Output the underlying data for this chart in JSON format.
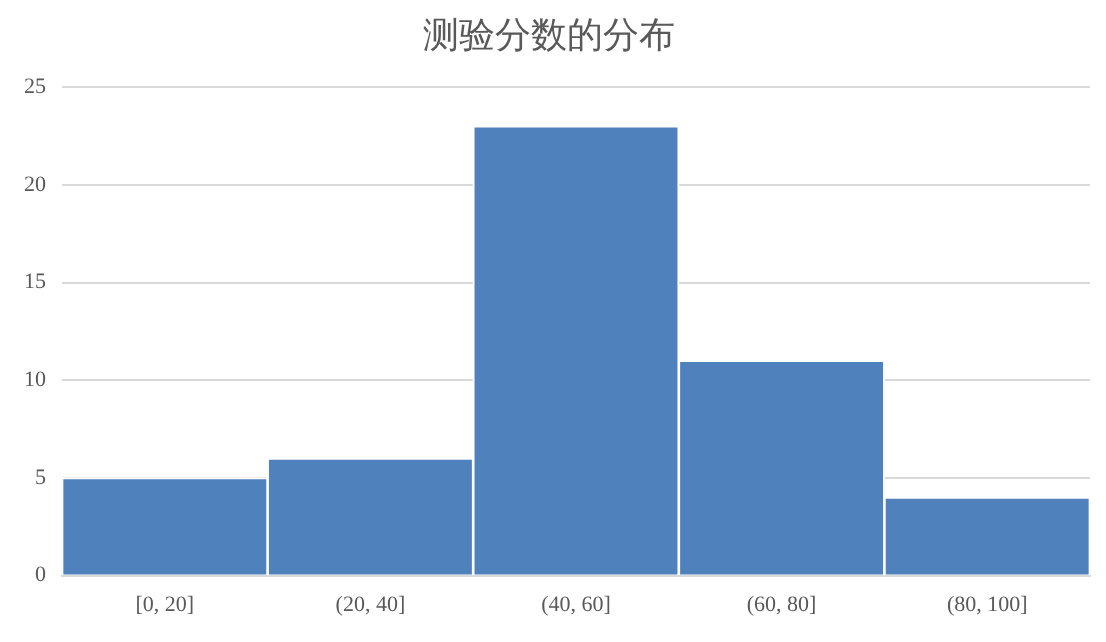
{
  "chart_data": {
    "type": "bar",
    "title": "测验分数的分布",
    "categories": [
      "[0, 20]",
      "(20, 40]",
      "(40, 60]",
      "(60, 80]",
      "(80, 100]"
    ],
    "values": [
      5,
      6,
      23,
      11,
      4
    ],
    "color": "#4f81bd",
    "ylim": [
      0,
      25
    ],
    "yticks": [
      0,
      5,
      10,
      15,
      20,
      25
    ],
    "grid": "y"
  }
}
